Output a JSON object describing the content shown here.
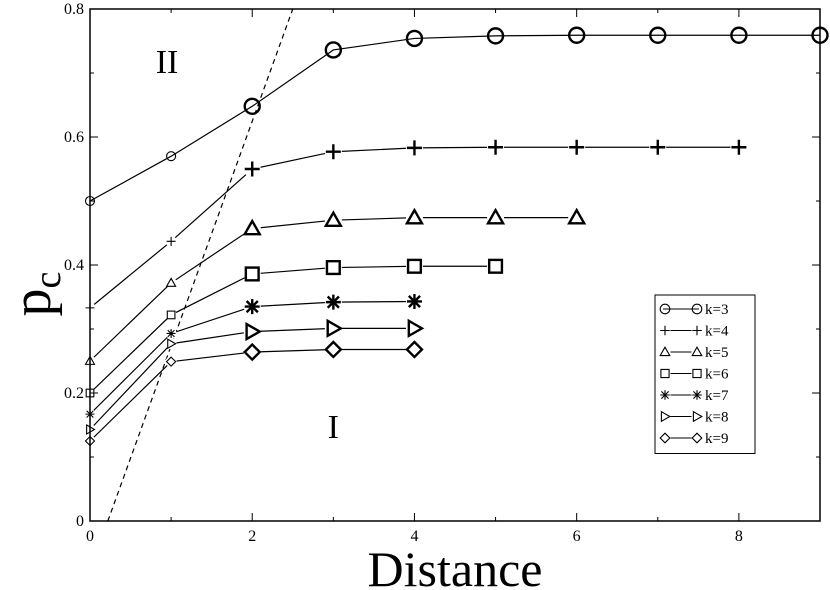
{
  "chart_data": {
    "type": "line",
    "xlabel": "Distance",
    "ylabel_main": "p",
    "ylabel_sub": "c",
    "xlim": [
      0,
      9
    ],
    "ylim": [
      0,
      0.8
    ],
    "xticks": [
      0,
      2,
      4,
      6,
      8
    ],
    "xtick_labels": [
      "0",
      "2",
      "4",
      "6",
      "8"
    ],
    "yticks": [
      0,
      0.2,
      0.4,
      0.6,
      0.8
    ],
    "ytick_labels": [
      "0",
      "0.2",
      "0.4",
      "0.6",
      "0.8"
    ],
    "grid": false,
    "legend_position": "right-middle",
    "series": [
      {
        "name": "k=3",
        "marker": "circle",
        "x": [
          0,
          1,
          2,
          3,
          4,
          5,
          6,
          7,
          8,
          9
        ],
        "y": [
          0.5,
          0.57,
          0.648,
          0.736,
          0.754,
          0.758,
          0.759,
          0.759,
          0.759,
          0.759
        ]
      },
      {
        "name": "k=4",
        "marker": "plus",
        "x": [
          0,
          1,
          2,
          3,
          4,
          5,
          6,
          7,
          8
        ],
        "y": [
          0.333,
          0.437,
          0.55,
          0.577,
          0.583,
          0.584,
          0.584,
          0.584,
          0.584
        ]
      },
      {
        "name": "k=5",
        "marker": "triangle-up",
        "x": [
          0,
          1,
          2,
          3,
          4,
          5,
          6
        ],
        "y": [
          0.25,
          0.372,
          0.457,
          0.47,
          0.474,
          0.474,
          0.474
        ]
      },
      {
        "name": "k=6",
        "marker": "square",
        "x": [
          0,
          1,
          2,
          3,
          4,
          5
        ],
        "y": [
          0.2,
          0.322,
          0.386,
          0.396,
          0.398,
          0.398
        ]
      },
      {
        "name": "k=7",
        "marker": "star",
        "x": [
          0,
          1,
          2,
          3,
          4
        ],
        "y": [
          0.167,
          0.293,
          0.335,
          0.342,
          0.343
        ]
      },
      {
        "name": "k=8",
        "marker": "triangle-right",
        "x": [
          0,
          1,
          2,
          3,
          4
        ],
        "y": [
          0.143,
          0.277,
          0.296,
          0.301,
          0.301
        ]
      },
      {
        "name": "k=9",
        "marker": "diamond",
        "x": [
          0,
          1,
          2,
          3,
          4
        ],
        "y": [
          0.125,
          0.249,
          0.264,
          0.268,
          0.268
        ]
      }
    ],
    "boundary_line": {
      "style": "dashed",
      "x": [
        0.22,
        2.5
      ],
      "y": [
        0,
        0.8
      ]
    },
    "annotations": [
      {
        "text": "II",
        "x": 0.95,
        "y": 0.7
      },
      {
        "text": "I",
        "x": 3.0,
        "y": 0.13
      }
    ]
  }
}
